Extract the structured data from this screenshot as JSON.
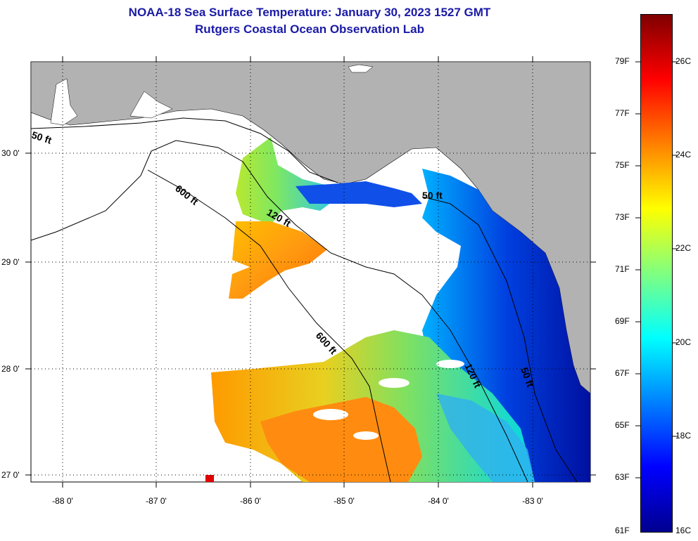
{
  "header": {
    "title": "NOAA-18 Sea Surface Temperature:  January 30, 2023 1527 GMT",
    "subtitle": "Rutgers Coastal Ocean Observation Lab"
  },
  "map": {
    "longitude_ticks": [
      "-88 0'",
      "-87 0'",
      "-86 0'",
      "-85 0'",
      "-84 0'",
      "-83 0'"
    ],
    "latitude_ticks": [
      "30 0'",
      "29 0'",
      "28 0'",
      "27 0'"
    ],
    "contour_labels": [
      "50 ft",
      "600 ft",
      "120 ft",
      "50 ft",
      "600 ft",
      "120 ft",
      "50 ft"
    ],
    "colors": {
      "land": "#b2b2b2",
      "water_nodata": "#ffffff"
    }
  },
  "colorbar": {
    "fahrenheit_labels": [
      "79F",
      "77F",
      "75F",
      "73F",
      "71F",
      "69F",
      "67F",
      "65F",
      "63F",
      "61F"
    ],
    "celsius_labels": [
      "26C",
      "24C",
      "22C",
      "20C",
      "18C",
      "16C"
    ],
    "colors_top_to_bottom": [
      "#7f0000",
      "#ff0000",
      "#ff8000",
      "#ffff00",
      "#80ff80",
      "#00ffff",
      "#0080ff",
      "#0000ff",
      "#00008f"
    ]
  }
}
